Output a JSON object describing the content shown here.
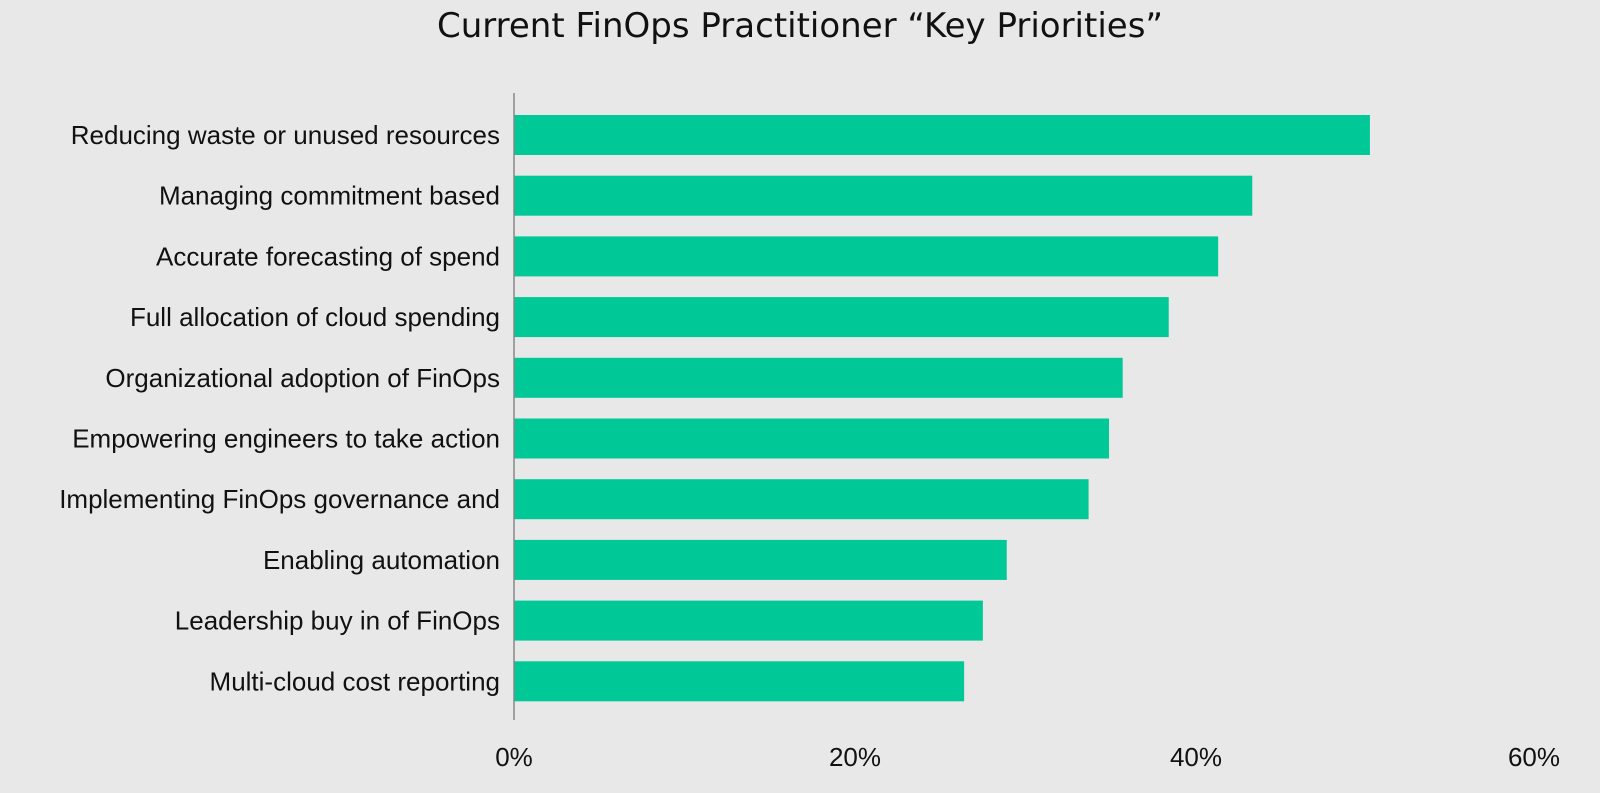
{
  "chart_data": {
    "type": "bar",
    "orientation": "horizontal",
    "title": "Current FinOps Practitioner “Key Priorities”",
    "categories": [
      "Reducing waste or unused resources",
      "Managing commitment based",
      "Accurate forecasting of spend",
      "Full allocation of cloud spending",
      "Organizational adoption of FinOps",
      "Empowering engineers to take action",
      "Implementing FinOps governance and",
      "Enabling automation",
      "Leadership buy in of FinOps",
      "Multi-cloud cost reporting"
    ],
    "values": [
      50.2,
      43.3,
      41.3,
      38.4,
      35.7,
      34.9,
      33.7,
      28.9,
      27.5,
      26.4
    ],
    "xlim": [
      0,
      60
    ],
    "xticks": [
      "0%",
      "20%",
      "40%",
      "60%"
    ],
    "xtick_values": [
      0,
      20,
      40,
      60
    ],
    "bar_color": "#00c896",
    "axis_color": "#888888",
    "grid": false,
    "legend": "none"
  }
}
